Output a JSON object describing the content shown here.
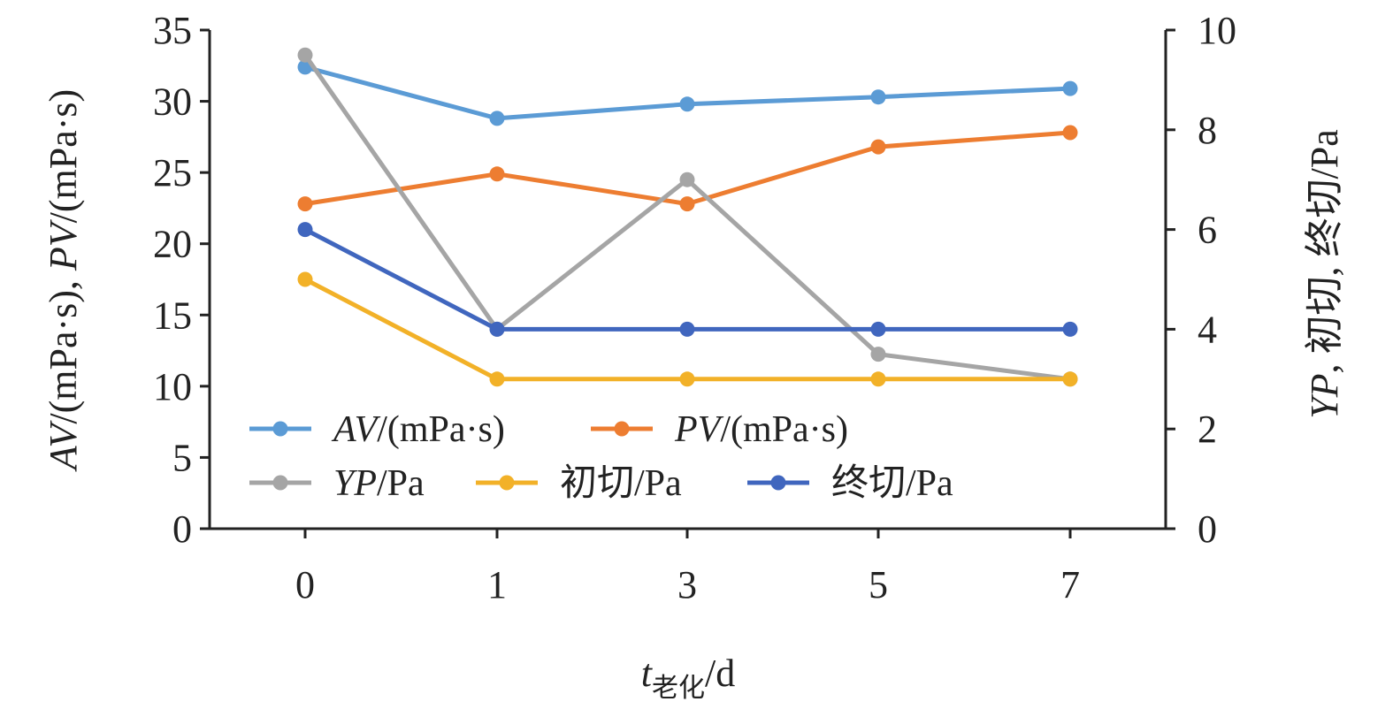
{
  "chart_data": {
    "type": "line",
    "categories": [
      "0",
      "1",
      "3",
      "5",
      "7"
    ],
    "x_axis": {
      "label_main": "t",
      "label_sub": "老化",
      "label_unit": "/d"
    },
    "y_left": {
      "label_parts": [
        {
          "text": "AV",
          "italic": true
        },
        {
          "text": "/(mPa·s), ",
          "italic": false
        },
        {
          "text": "PV",
          "italic": true
        },
        {
          "text": "/(mPa·s)",
          "italic": false
        }
      ],
      "ylim": [
        0,
        35
      ],
      "ticks": [
        0,
        5,
        10,
        15,
        20,
        25,
        30,
        35
      ]
    },
    "y_right": {
      "label_parts": [
        {
          "text": "YP",
          "italic": true
        },
        {
          "text": ", 初切, 终切/Pa",
          "italic": false
        }
      ],
      "ylim": [
        0,
        10
      ],
      "ticks": [
        0,
        2,
        4,
        6,
        8,
        10
      ]
    },
    "grid": false,
    "legend_position": "bottom-left",
    "series": [
      {
        "key": "av",
        "name_italic": "AV",
        "name_rest": "/(mPa·s)",
        "axis": "left",
        "color": "#5B9BD5",
        "values": [
          32.4,
          28.8,
          29.8,
          30.3,
          30.9
        ]
      },
      {
        "key": "pv",
        "name_italic": "PV",
        "name_rest": "/(mPa·s)",
        "axis": "left",
        "color": "#ED7D31",
        "values": [
          22.8,
          24.9,
          22.8,
          26.8,
          27.8
        ]
      },
      {
        "key": "yp",
        "name_italic": "YP",
        "name_rest": "/Pa",
        "axis": "right",
        "color": "#A5A5A5",
        "values": [
          9.5,
          4.0,
          7.0,
          3.5,
          3.0
        ]
      },
      {
        "key": "initial-gel",
        "name_italic": "",
        "name_rest": "初切/Pa",
        "axis": "right",
        "color": "#F2B128",
        "values": [
          5.0,
          3.0,
          3.0,
          3.0,
          3.0
        ]
      },
      {
        "key": "final-gel",
        "name_italic": "",
        "name_rest": "终切/Pa",
        "axis": "right",
        "color": "#4066BE",
        "values": [
          6.0,
          4.0,
          4.0,
          4.0,
          4.0
        ]
      }
    ]
  }
}
